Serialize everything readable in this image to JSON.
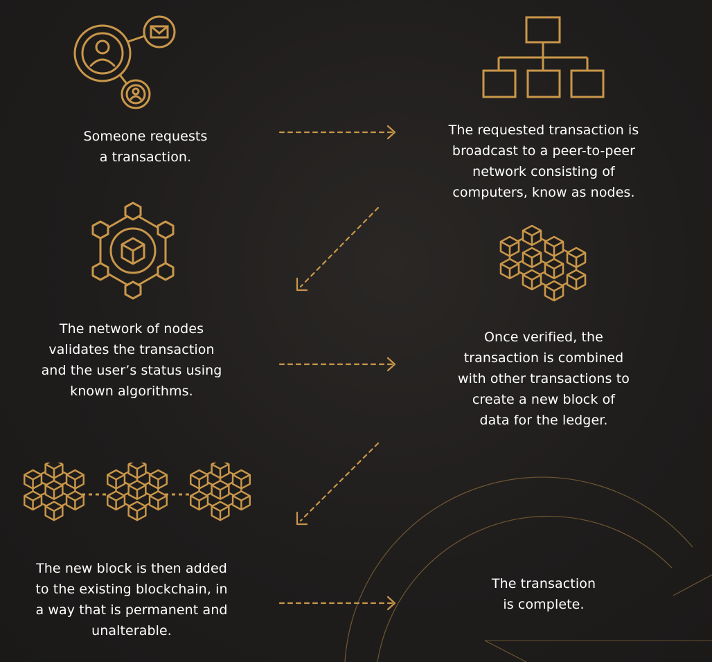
{
  "steps": [
    {
      "lines": [
        "Someone requests",
        "a transaction."
      ]
    },
    {
      "lines": [
        "The requested transaction is",
        "broadcast to a peer-to-peer",
        "network consisting of",
        "computers, know as nodes."
      ]
    },
    {
      "lines": [
        "The network of nodes",
        "validates the transaction",
        "and the user’s status using",
        "known algorithms."
      ]
    },
    {
      "lines": [
        "Once verified, the",
        "transaction is combined",
        "with other transactions to",
        "create a  new block of",
        "data for the ledger."
      ]
    },
    {
      "lines": [
        "The new block is then added",
        "to the existing blockchain, in",
        "a way that is permanent and",
        "unalterable."
      ]
    },
    {
      "lines": [
        "The transaction",
        "is complete."
      ]
    }
  ],
  "icons": [
    "users-network-icon",
    "hierarchy-icon",
    "hexagon-cube-network-icon",
    "cube-cluster-icon",
    "blockchain-icon"
  ],
  "colors": {
    "background": "#1f1d1c",
    "accent": "#c9974a",
    "text": "#ffffff"
  }
}
